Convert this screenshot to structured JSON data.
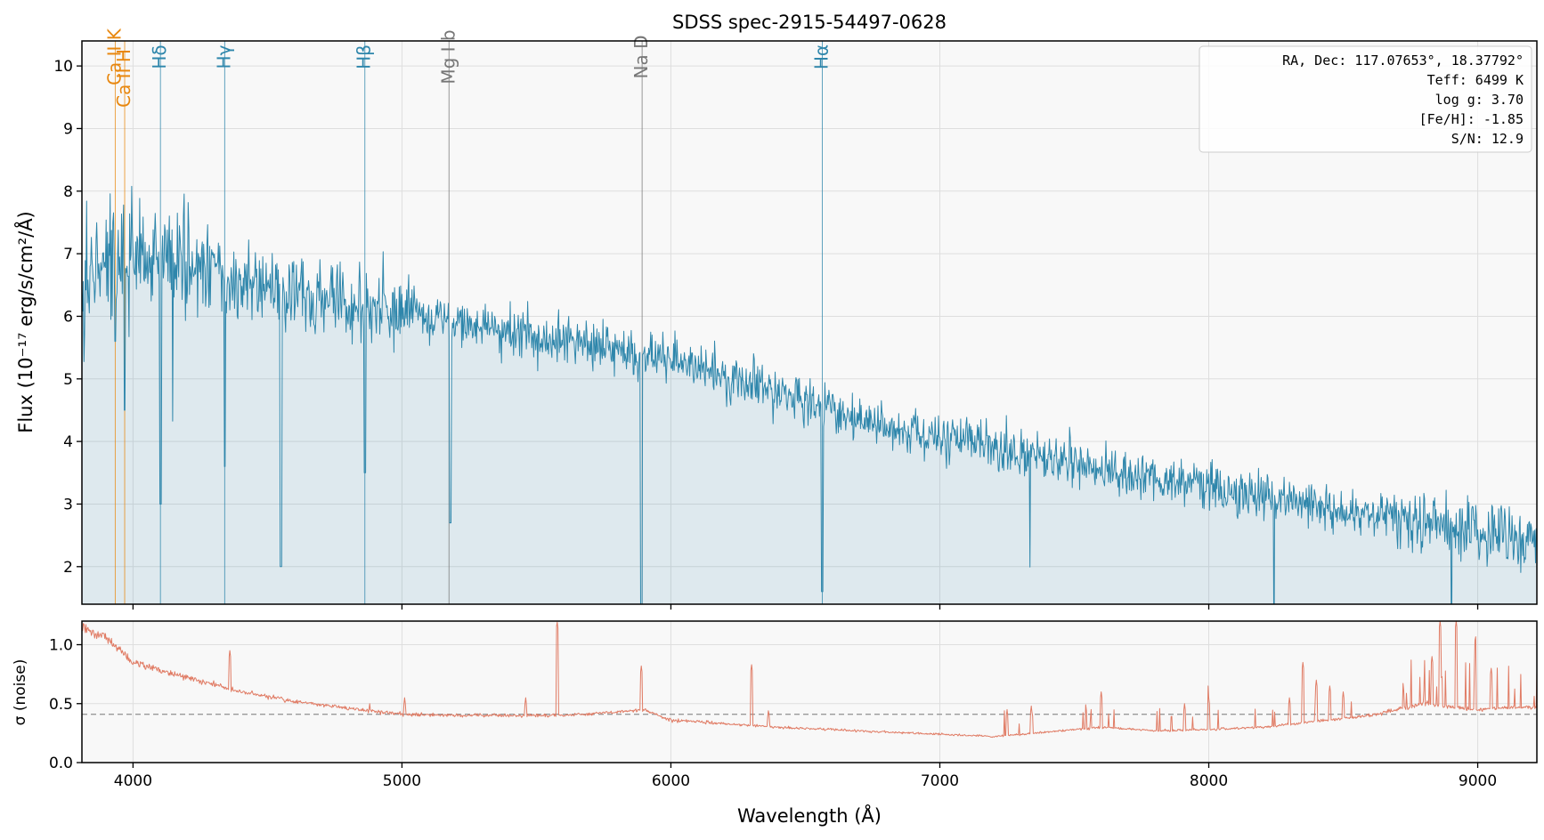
{
  "chart_data": [
    {
      "type": "line",
      "title": "SDSS spec-2915-54497-0628",
      "xlabel": "",
      "ylabel": "Flux (10⁻¹⁷ erg/s/cm²/Å)",
      "xlim": [
        3810,
        9220
      ],
      "ylim": [
        1.4,
        10.4
      ],
      "yticks": [
        2,
        3,
        4,
        5,
        6,
        7,
        8,
        9,
        10
      ],
      "grid": true,
      "series": [
        {
          "color": "#2e86ab",
          "fill": true,
          "continuum_points": [
            [
              3810,
              6.6
            ],
            [
              3900,
              7.0
            ],
            [
              4000,
              7.0
            ],
            [
              4200,
              6.8
            ],
            [
              4400,
              6.5
            ],
            [
              4600,
              6.35
            ],
            [
              4800,
              6.2
            ],
            [
              5000,
              6.05
            ],
            [
              5200,
              5.9
            ],
            [
              5400,
              5.75
            ],
            [
              5600,
              5.6
            ],
            [
              5800,
              5.45
            ],
            [
              6000,
              5.25
            ],
            [
              6200,
              5.05
            ],
            [
              6400,
              4.8
            ],
            [
              6600,
              4.5
            ],
            [
              6800,
              4.25
            ],
            [
              7000,
              4.05
            ],
            [
              7200,
              3.9
            ],
            [
              7400,
              3.75
            ],
            [
              7600,
              3.55
            ],
            [
              7800,
              3.4
            ],
            [
              8000,
              3.25
            ],
            [
              8200,
              3.1
            ],
            [
              8400,
              2.95
            ],
            [
              8600,
              2.85
            ],
            [
              8800,
              2.7
            ],
            [
              9000,
              2.6
            ],
            [
              9220,
              2.45
            ]
          ],
          "absorption_dips": [
            [
              3934,
              5.6
            ],
            [
              3969,
              4.5
            ],
            [
              4102,
              3.0
            ],
            [
              4341,
              3.6
            ],
            [
              4550,
              2.0
            ],
            [
              4862,
              3.5
            ],
            [
              5180,
              2.7
            ],
            [
              5890,
              1.2
            ],
            [
              6563,
              1.6
            ]
          ]
        }
      ],
      "annotations": {
        "lines": [
          {
            "label": "Ca II K",
            "wavelength": 3934,
            "color": "#e8870e"
          },
          {
            "label": "Ca II H",
            "wavelength": 3969,
            "color": "#e8870e"
          },
          {
            "label": "Hδ",
            "wavelength": 4102,
            "color": "#2e86ab"
          },
          {
            "label": "Hγ",
            "wavelength": 4341,
            "color": "#2e86ab"
          },
          {
            "label": "Hβ",
            "wavelength": 4862,
            "color": "#2e86ab"
          },
          {
            "label": "Mg I b",
            "wavelength": 5175,
            "color": "#777777"
          },
          {
            "label": "Na D",
            "wavelength": 5893,
            "color": "#777777"
          },
          {
            "label": "Hα",
            "wavelength": 6563,
            "color": "#2e86ab"
          }
        ],
        "info_box": [
          "RA, Dec: 117.07653°, 18.37792°",
          "Teff: 6499 K",
          "log g: 3.70",
          "[Fe/H]: -1.85",
          "S/N: 12.9"
        ]
      }
    },
    {
      "type": "line",
      "title": "",
      "xlabel": "Wavelength (Å)",
      "ylabel": "σ (noise)",
      "xlim": [
        3810,
        9220
      ],
      "ylim": [
        0.0,
        1.2
      ],
      "xticks": [
        4000,
        5000,
        6000,
        7000,
        8000,
        9000
      ],
      "yticks": [
        0.0,
        0.5,
        1.0
      ],
      "grid": true,
      "reference_line": 0.41,
      "series": [
        {
          "color": "#e07b64",
          "baseline_points": [
            [
              3810,
              1.15
            ],
            [
              3900,
              1.05
            ],
            [
              4000,
              0.85
            ],
            [
              4200,
              0.72
            ],
            [
              4400,
              0.6
            ],
            [
              4600,
              0.52
            ],
            [
              4800,
              0.46
            ],
            [
              5000,
              0.41
            ],
            [
              5200,
              0.4
            ],
            [
              5400,
              0.4
            ],
            [
              5600,
              0.4
            ],
            [
              5800,
              0.43
            ],
            [
              5900,
              0.45
            ],
            [
              6000,
              0.36
            ],
            [
              6200,
              0.33
            ],
            [
              6400,
              0.3
            ],
            [
              6600,
              0.28
            ],
            [
              6800,
              0.26
            ],
            [
              7000,
              0.24
            ],
            [
              7200,
              0.22
            ],
            [
              7400,
              0.26
            ],
            [
              7600,
              0.3
            ],
            [
              7800,
              0.27
            ],
            [
              8000,
              0.28
            ],
            [
              8200,
              0.3
            ],
            [
              8400,
              0.35
            ],
            [
              8600,
              0.4
            ],
            [
              8800,
              0.5
            ],
            [
              9000,
              0.45
            ],
            [
              9220,
              0.47
            ]
          ],
          "spikes": [
            [
              4360,
              0.95
            ],
            [
              4880,
              0.5
            ],
            [
              5010,
              0.55
            ],
            [
              5460,
              0.55
            ],
            [
              5577,
              1.2
            ],
            [
              5890,
              0.82
            ],
            [
              6300,
              0.83
            ],
            [
              6363,
              0.45
            ],
            [
              7250,
              0.45
            ],
            [
              7340,
              0.48
            ],
            [
              7600,
              0.6
            ],
            [
              7910,
              0.5
            ],
            [
              8000,
              0.55
            ],
            [
              8300,
              0.55
            ],
            [
              8350,
              0.85
            ],
            [
              8400,
              0.7
            ],
            [
              8450,
              0.65
            ],
            [
              8500,
              0.6
            ],
            [
              8830,
              0.9
            ],
            [
              8860,
              1.2
            ],
            [
              8920,
              1.2
            ],
            [
              8990,
              0.85
            ],
            [
              9050,
              0.8
            ]
          ]
        }
      ]
    }
  ]
}
